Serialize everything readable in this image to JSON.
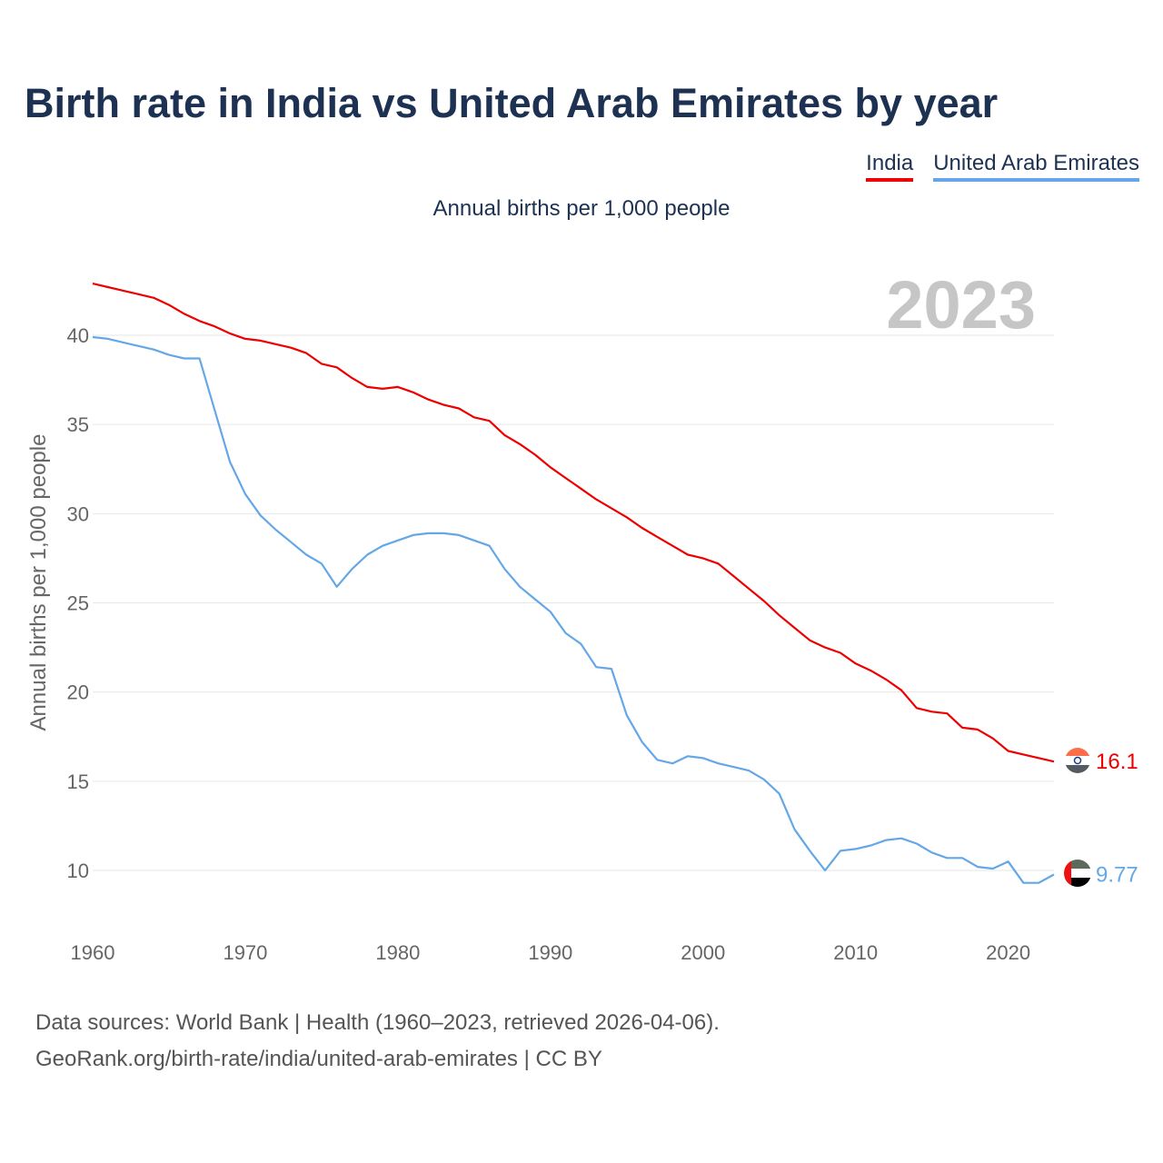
{
  "header": {
    "title": "Birth rate in India vs United Arab Emirates by year",
    "subtitle": "Annual births per 1,000 people"
  },
  "legend": {
    "items": [
      {
        "label": "India",
        "color": "#ee0000"
      },
      {
        "label": "United Arab Emirates",
        "color": "#64a7e8"
      }
    ]
  },
  "footer": {
    "source_line": "Data sources: World Bank | Health (1960–2023, retrieved 2026-04-06).",
    "link_line": "GeoRank.org/birth-rate/india/united-arab-emirates | CC BY"
  },
  "chart_data": {
    "type": "line",
    "title": "Birth rate in India vs United Arab Emirates by year",
    "ylabel": "Annual births per 1,000 people",
    "xlabel": "",
    "year_label": "2023",
    "x_range": [
      1960,
      2023
    ],
    "ylim": [
      7,
      43
    ],
    "x_ticks": [
      1960,
      1970,
      1980,
      1990,
      2000,
      2010,
      2020
    ],
    "y_ticks": [
      10,
      15,
      20,
      25,
      30,
      35,
      40
    ],
    "grid": true,
    "x": [
      1960,
      1961,
      1962,
      1963,
      1964,
      1965,
      1966,
      1967,
      1968,
      1969,
      1970,
      1971,
      1972,
      1973,
      1974,
      1975,
      1976,
      1977,
      1978,
      1979,
      1980,
      1981,
      1982,
      1983,
      1984,
      1985,
      1986,
      1987,
      1988,
      1989,
      1990,
      1991,
      1992,
      1993,
      1994,
      1995,
      1996,
      1997,
      1998,
      1999,
      2000,
      2001,
      2002,
      2003,
      2004,
      2005,
      2006,
      2007,
      2008,
      2009,
      2010,
      2011,
      2012,
      2013,
      2014,
      2015,
      2016,
      2017,
      2018,
      2019,
      2020,
      2021,
      2022,
      2023
    ],
    "series": [
      {
        "name": "India",
        "color": "#ee0000",
        "end_label": "16.1",
        "values": [
          42.9,
          42.7,
          42.5,
          42.3,
          42.1,
          41.7,
          41.2,
          40.8,
          40.5,
          40.1,
          39.8,
          39.7,
          39.5,
          39.3,
          39.0,
          38.4,
          38.2,
          37.6,
          37.1,
          37.0,
          37.1,
          36.8,
          36.4,
          36.1,
          35.9,
          35.4,
          35.2,
          34.4,
          33.9,
          33.3,
          32.6,
          32.0,
          31.4,
          30.8,
          30.3,
          29.8,
          29.2,
          28.7,
          28.2,
          27.7,
          27.5,
          27.2,
          26.5,
          25.8,
          25.1,
          24.3,
          23.6,
          22.9,
          22.5,
          22.2,
          21.6,
          21.2,
          20.7,
          20.1,
          19.1,
          18.9,
          18.8,
          18.0,
          17.9,
          17.4,
          16.7,
          16.5,
          16.3,
          16.1
        ]
      },
      {
        "name": "United Arab Emirates",
        "color": "#64a7e8",
        "end_label": "9.77",
        "values": [
          39.9,
          39.8,
          39.6,
          39.4,
          39.2,
          38.9,
          38.7,
          38.7,
          35.8,
          32.9,
          31.1,
          29.9,
          29.1,
          28.4,
          27.7,
          27.2,
          25.9,
          26.9,
          27.7,
          28.2,
          28.5,
          28.8,
          28.9,
          28.9,
          28.8,
          28.5,
          28.2,
          26.9,
          25.9,
          25.2,
          24.5,
          23.3,
          22.7,
          21.4,
          21.3,
          18.7,
          17.2,
          16.2,
          16.0,
          16.4,
          16.3,
          16.0,
          15.8,
          15.6,
          15.1,
          14.3,
          12.3,
          11.1,
          10.0,
          11.1,
          11.2,
          11.4,
          11.7,
          11.8,
          11.5,
          11.0,
          10.7,
          10.7,
          10.2,
          10.1,
          10.5,
          9.3,
          9.3,
          9.77
        ]
      }
    ]
  }
}
